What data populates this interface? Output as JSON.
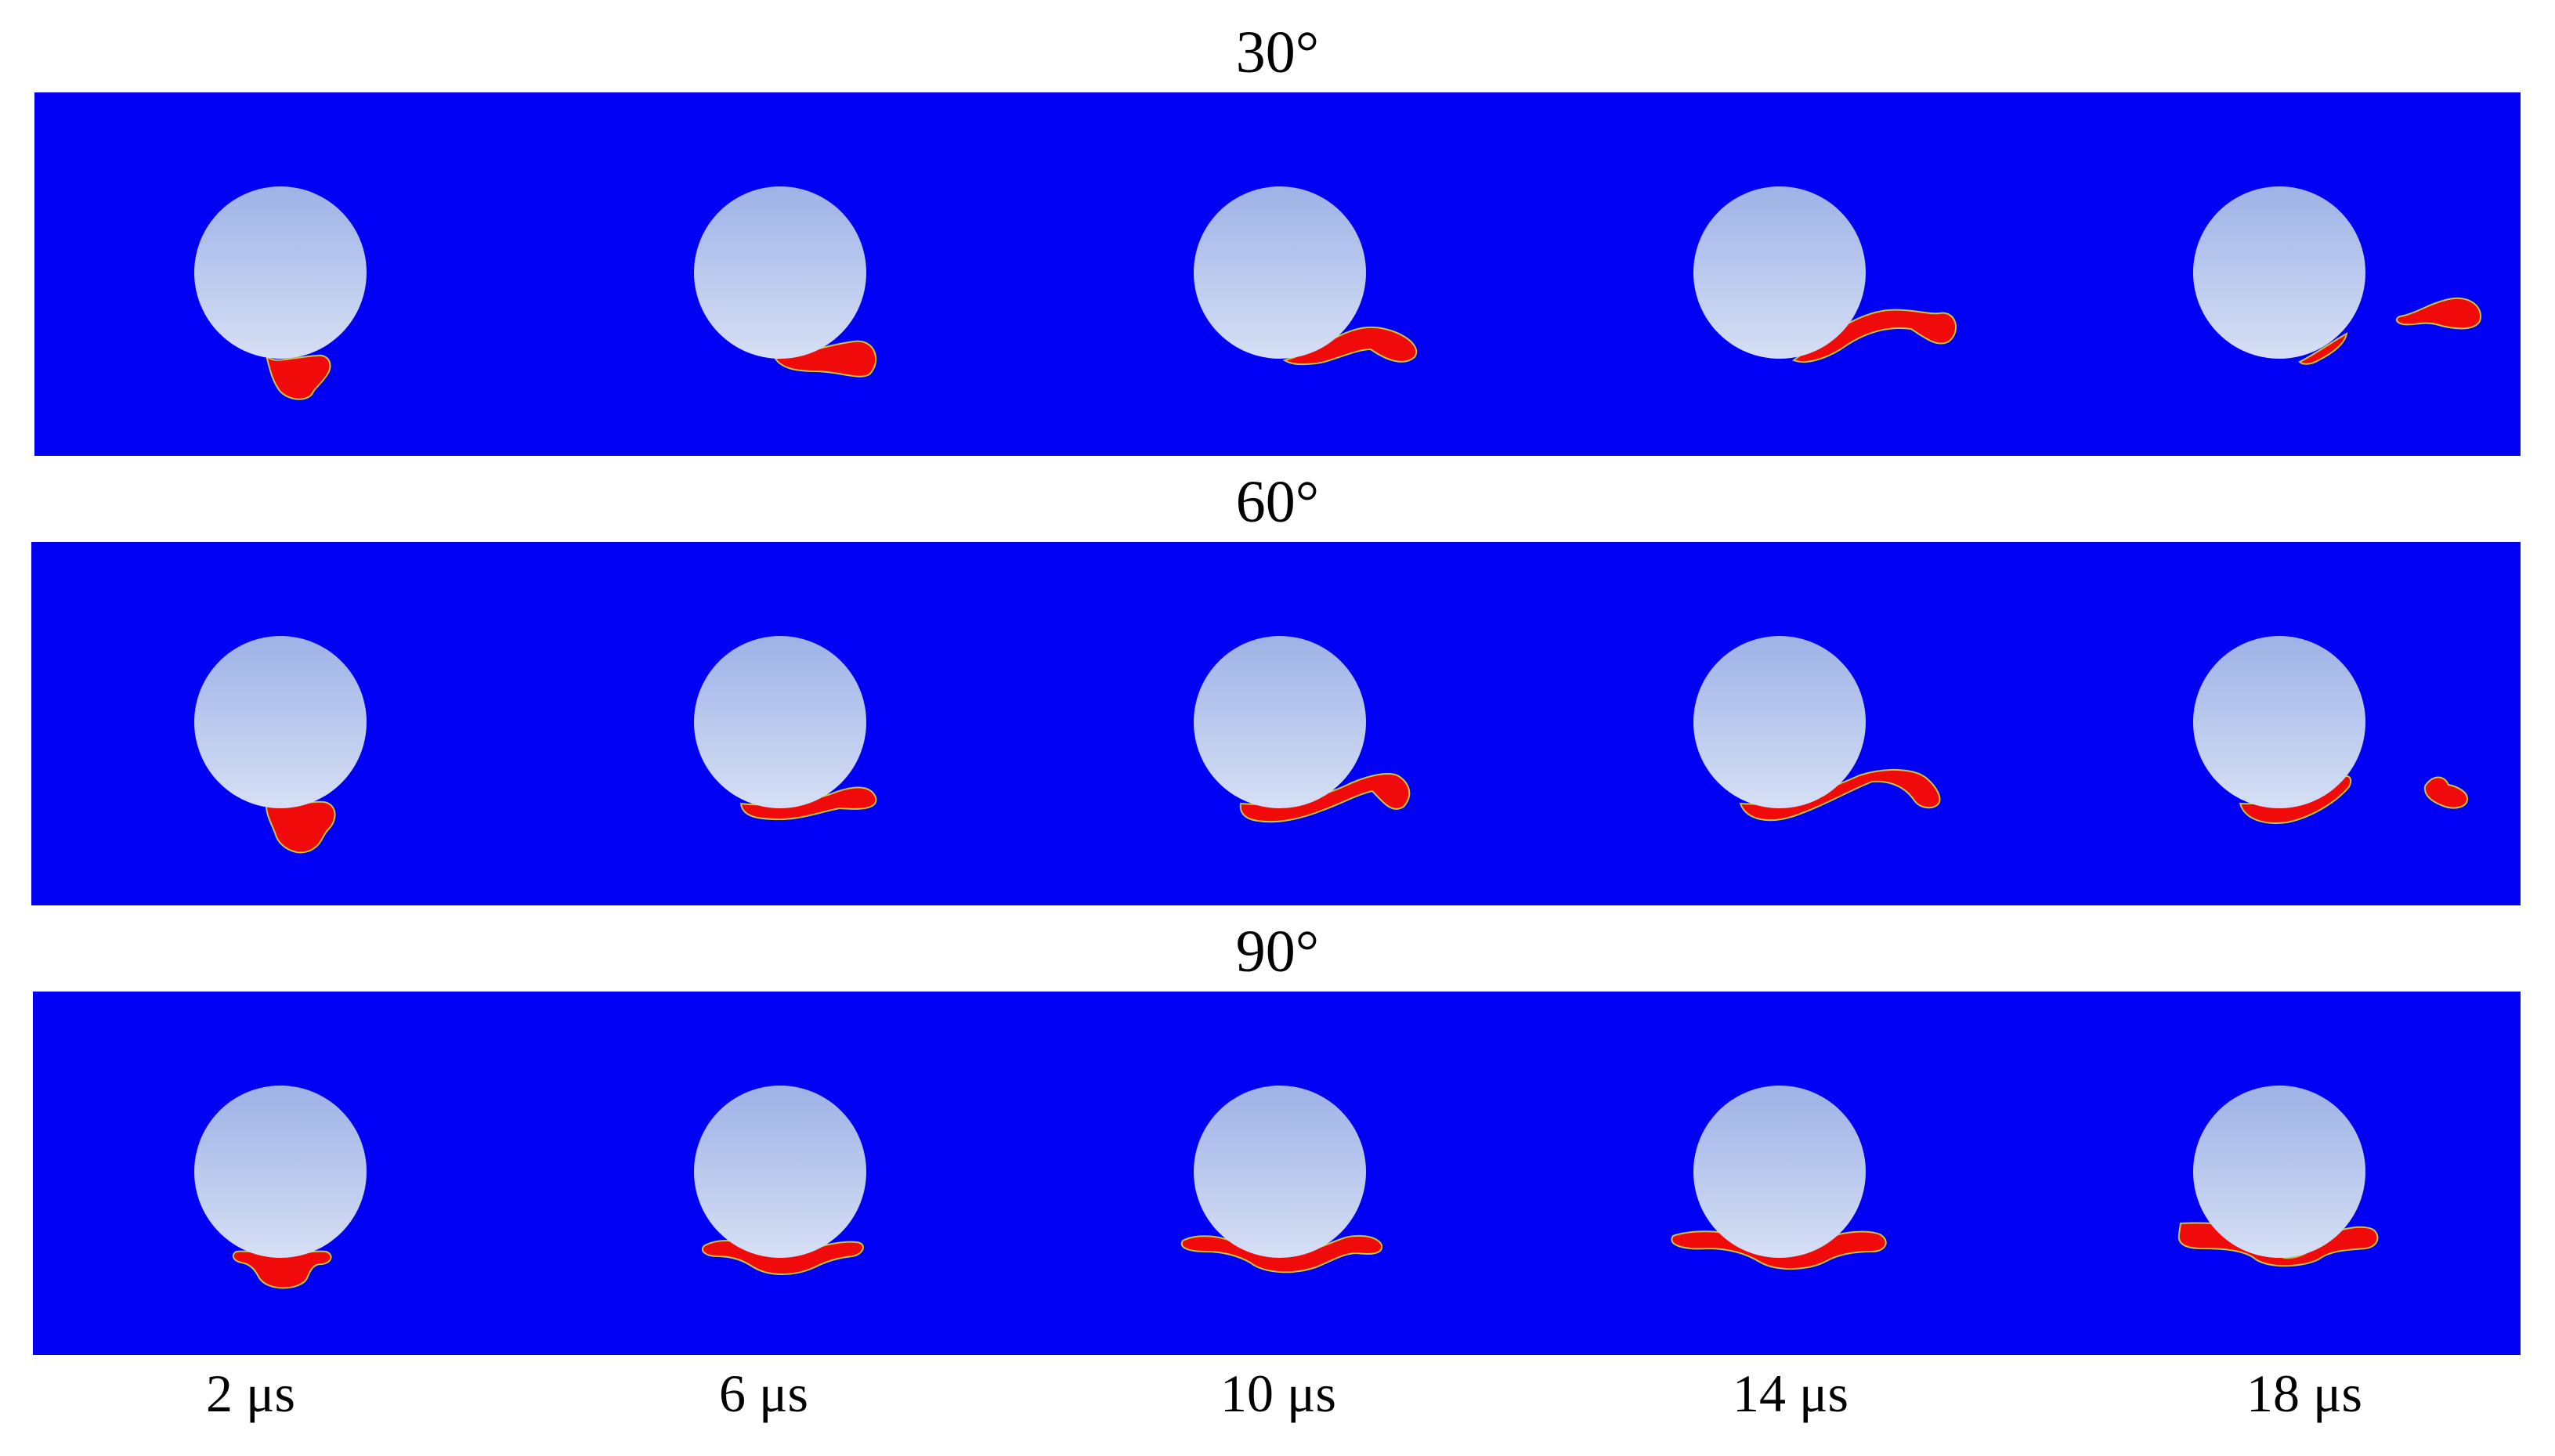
{
  "figure": {
    "colors": {
      "background": "#0000f5",
      "particle_top": "#9eb2e6",
      "particle_bottom": "#d6dff4",
      "jet": "#f00a0a",
      "jet_edge": "#c8c840"
    },
    "rows": [
      {
        "title": "30°",
        "angle": 30
      },
      {
        "title": "60°",
        "angle": 60
      },
      {
        "title": "90°",
        "angle": 90
      }
    ],
    "time_labels": [
      "2 μs",
      "6 μs",
      "10 μs",
      "14 μs",
      "18 μs"
    ]
  }
}
